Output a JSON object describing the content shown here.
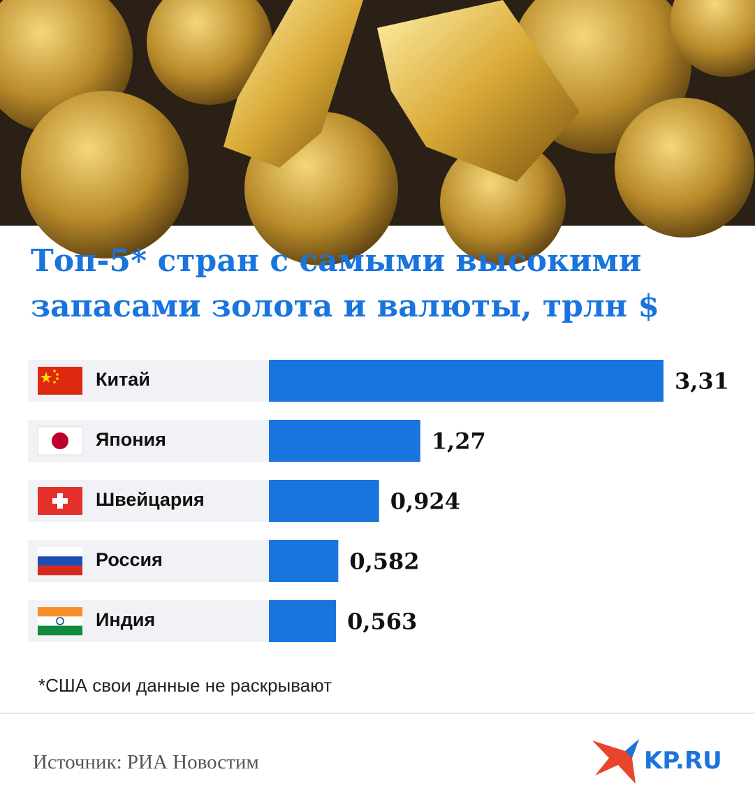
{
  "chart_data": {
    "type": "bar",
    "orientation": "horizontal",
    "title_lines": [
      "Топ-5* стран с самыми высокими",
      "запасами золота и валюты, трлн $"
    ],
    "categories": [
      "Китай",
      "Япония",
      "Швейцария",
      "Россия",
      "Индия"
    ],
    "values": [
      3.31,
      1.27,
      0.924,
      0.582,
      0.563
    ],
    "value_labels": [
      "3,31",
      "1,27",
      "0,924",
      "0,582",
      "0,563"
    ],
    "color": "#1a74dd",
    "footnote": "*США свои данные не раскрывают",
    "source": "Источник: РИА Новостим",
    "logo": "KP.RU"
  }
}
